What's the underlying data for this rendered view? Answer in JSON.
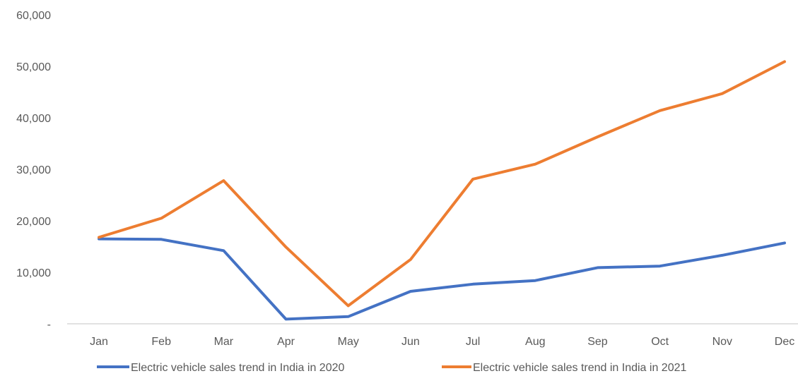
{
  "chart_data": {
    "type": "line",
    "categories": [
      "Jan",
      "Feb",
      "Mar",
      "Apr",
      "May",
      "Jun",
      "Jul",
      "Aug",
      "Sep",
      "Oct",
      "Nov",
      "Dec"
    ],
    "series": [
      {
        "name": "Electric vehicle sales trend in India in 2020",
        "color": "#4472C4",
        "values": [
          16500,
          16400,
          14200,
          900,
          1400,
          6300,
          7700,
          8400,
          10900,
          11200,
          13300,
          15700
        ]
      },
      {
        "name": "Electric vehicle sales trend in India in 2021",
        "color": "#ED7D31",
        "values": [
          16800,
          20500,
          27800,
          14900,
          3500,
          12500,
          28100,
          31000,
          36300,
          41400,
          44700,
          50900
        ]
      }
    ],
    "ylim": [
      0,
      60000
    ],
    "y_ticks": [
      "-",
      "10,000",
      "20,000",
      "30,000",
      "40,000",
      "50,000",
      "60,000"
    ],
    "y_tick_values": [
      0,
      10000,
      20000,
      30000,
      40000,
      50000,
      60000
    ],
    "grid": false,
    "legend_position": "bottom",
    "title": "",
    "xlabel": "",
    "ylabel": ""
  }
}
